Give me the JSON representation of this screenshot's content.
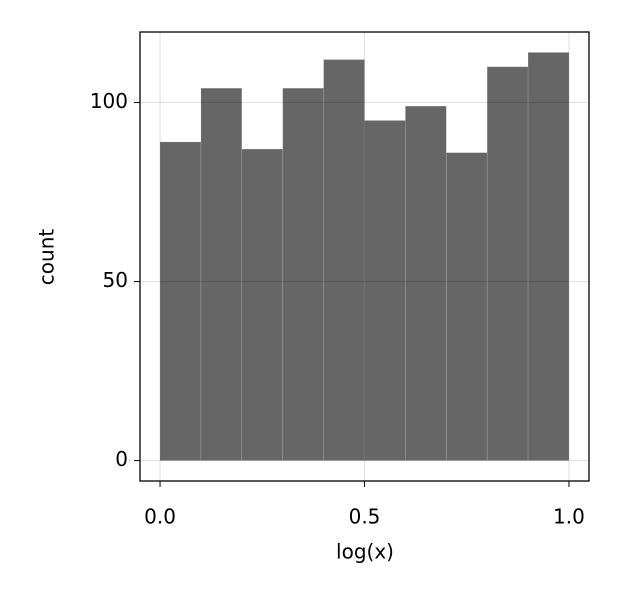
{
  "chart_data": {
    "type": "histogram",
    "xlabel": "log(x)",
    "ylabel": "count",
    "bins": [
      0,
      0.1,
      0.2,
      0.3,
      0.4,
      0.5,
      0.6,
      0.7,
      0.8,
      0.9,
      1.0
    ],
    "values": [
      89,
      104,
      87,
      104,
      112,
      95,
      99,
      86,
      110,
      114
    ],
    "color": "#666666",
    "xlim": [
      -0.049,
      1.049
    ],
    "ylim": [
      -5.7,
      119.7
    ],
    "xticks": [
      {
        "value": 0,
        "label": "0.0"
      },
      0.5,
      {
        "value": 1,
        "label": "1.0"
      }
    ],
    "yticks": [
      0,
      50,
      100
    ],
    "grid": true
  }
}
